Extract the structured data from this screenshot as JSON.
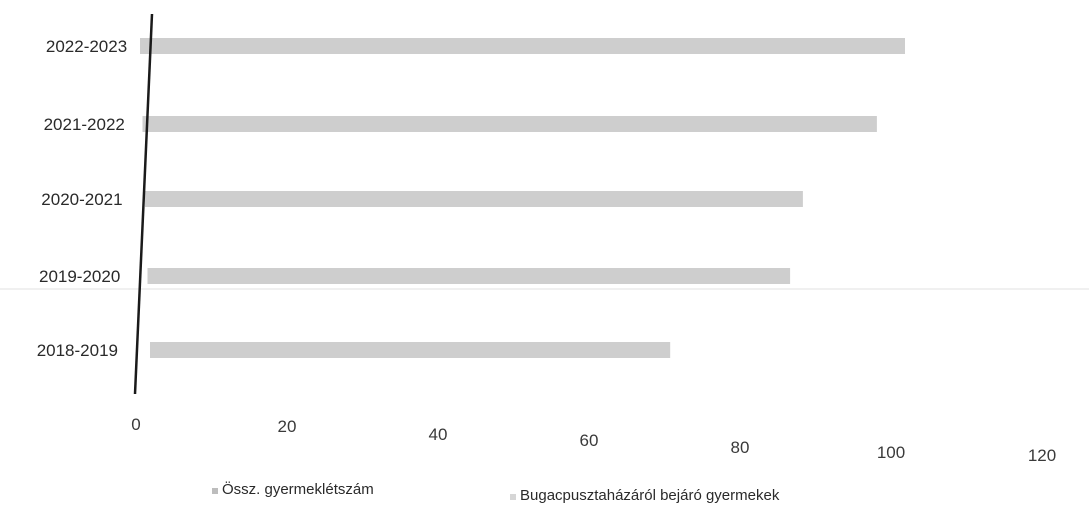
{
  "chart_data": {
    "type": "bar",
    "orientation": "horizontal",
    "categories": [
      "2018-2019",
      "2019-2020",
      "2020-2021",
      "2021-2022",
      "2022-2023"
    ],
    "series": [
      {
        "name": "Össz. gyermeklétszám",
        "color": "#bdbdbd",
        "values": [
          68,
          84,
          86,
          96,
          100
        ]
      },
      {
        "name": "Bugacpusztaházáról bejáró gyermekek",
        "color": "#d6d6d6",
        "values": [
          0,
          0,
          0,
          0,
          0
        ]
      }
    ],
    "xlim": [
      0,
      120
    ],
    "x_ticks": [
      "0",
      "20",
      "40",
      "60",
      "80",
      "100",
      "120"
    ],
    "legend_position": "bottom",
    "grid": false
  }
}
